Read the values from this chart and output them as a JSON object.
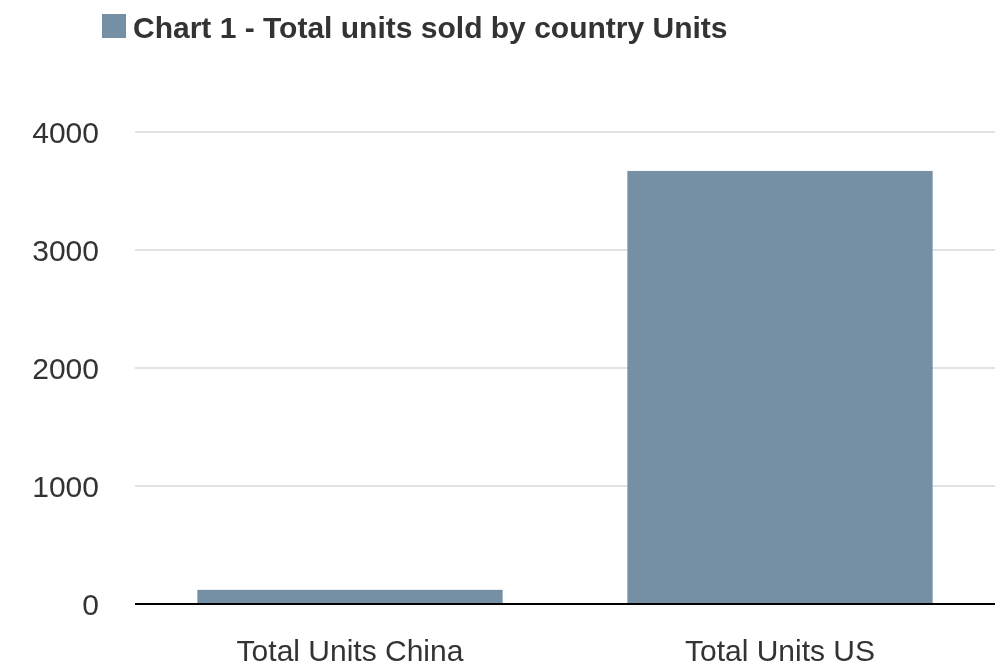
{
  "chart_data": {
    "type": "bar",
    "categories": [
      "Total Units China",
      "Total Units US"
    ],
    "series": [
      {
        "name": "Chart 1 - Total units sold by country  Units",
        "color": "#7590a5",
        "values": [
          120,
          3670
        ]
      }
    ],
    "ylim": [
      0,
      4000
    ],
    "yticks": [
      0,
      1000,
      2000,
      3000,
      4000
    ],
    "grid": "y",
    "legend": "top"
  }
}
